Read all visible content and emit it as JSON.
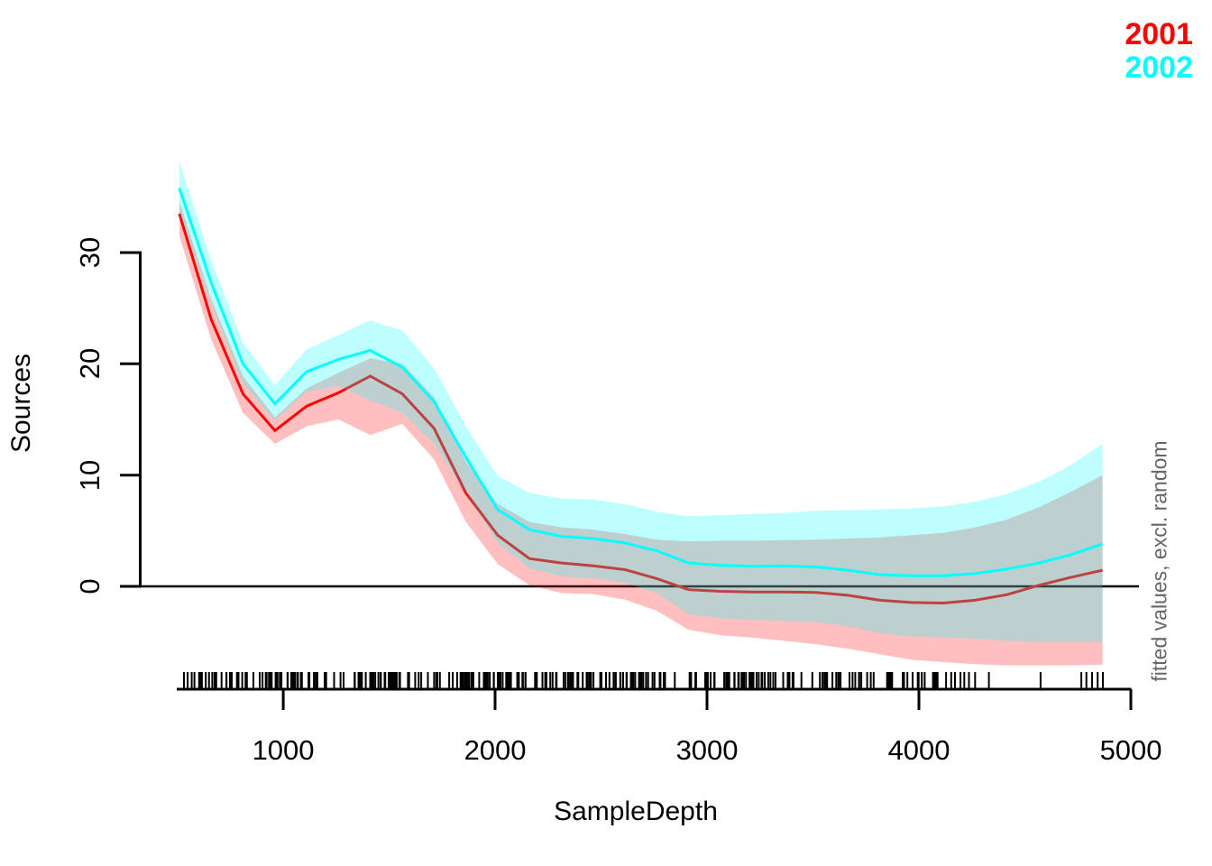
{
  "chart_data": {
    "type": "line",
    "title": "",
    "xlabel": "SampleDepth",
    "ylabel": "Sources",
    "right_label": "fitted values, excl. random",
    "legend_position": "top-right",
    "legend": [
      {
        "label": "2001",
        "color": "#FF0000"
      },
      {
        "label": "2002",
        "color": "#00FFFF"
      }
    ],
    "x_ticks": [
      1000,
      2000,
      3000,
      4000,
      5000
    ],
    "y_ticks": [
      0,
      10,
      20,
      30
    ],
    "xlim": [
      500,
      5000
    ],
    "ylim": [
      -8.5,
      38.5
    ],
    "grid": false,
    "zero_line": 0,
    "x": [
      510,
      660,
      810,
      961,
      1111,
      1261,
      1411,
      1562,
      1712,
      1862,
      2012,
      2162,
      2313,
      2463,
      2613,
      2763,
      2913,
      3064,
      3214,
      3364,
      3514,
      3664,
      3815,
      3965,
      4115,
      4265,
      4415,
      4566,
      4716,
      4866
    ],
    "series": [
      {
        "name": "2001",
        "color": "#FF0000",
        "band_color": "rgba(255,0,0,0.25)",
        "values": [
          33.5,
          24.0,
          17.3,
          14.0,
          16.2,
          17.4,
          18.9,
          17.3,
          14.2,
          8.4,
          4.6,
          2.5,
          2.1,
          1.85,
          1.5,
          0.7,
          -0.3,
          -0.45,
          -0.5,
          -0.5,
          -0.55,
          -0.8,
          -1.25,
          -1.45,
          -1.5,
          -1.25,
          -0.75,
          0.1,
          0.8,
          1.45
        ],
        "lower": [
          31.5,
          22.2,
          15.6,
          12.8,
          14.4,
          15.0,
          13.6,
          14.6,
          11.4,
          5.8,
          2.0,
          0.1,
          -0.6,
          -0.7,
          -1.2,
          -2.2,
          -3.9,
          -4.4,
          -4.6,
          -4.9,
          -5.2,
          -5.6,
          -6.1,
          -6.6,
          -6.8,
          -7.0,
          -7.1,
          -7.1,
          -7.1,
          -7.05
        ],
        "upper": [
          34.6,
          25.8,
          18.9,
          15.2,
          17.8,
          19.2,
          20.5,
          20.0,
          17.0,
          11.2,
          7.4,
          5.8,
          5.3,
          5.1,
          4.7,
          4.2,
          4.05,
          4.1,
          4.1,
          4.15,
          4.2,
          4.3,
          4.4,
          4.6,
          4.8,
          5.3,
          6.0,
          7.1,
          8.5,
          10.0
        ]
      },
      {
        "name": "2002",
        "color": "#00FFFF",
        "band_color": "rgba(0,255,255,0.26)",
        "values": [
          35.8,
          27.3,
          20.0,
          16.4,
          19.3,
          20.4,
          21.2,
          19.7,
          16.6,
          11.6,
          6.9,
          5.1,
          4.5,
          4.3,
          3.9,
          3.2,
          2.1,
          1.9,
          1.8,
          1.85,
          1.75,
          1.45,
          1.05,
          0.95,
          0.95,
          1.15,
          1.55,
          2.1,
          2.85,
          3.8
        ],
        "lower": [
          33.7,
          25.4,
          18.2,
          14.9,
          17.5,
          18.0,
          16.7,
          15.6,
          12.8,
          8.4,
          3.9,
          1.6,
          0.9,
          0.75,
          0.3,
          -0.6,
          -2.5,
          -2.9,
          -3.0,
          -3.1,
          -3.2,
          -3.6,
          -4.2,
          -4.5,
          -4.6,
          -4.7,
          -4.9,
          -5.0,
          -5.0,
          -5.0
        ],
        "upper": [
          38.2,
          29.3,
          21.9,
          18.1,
          21.3,
          22.6,
          23.9,
          23.0,
          19.6,
          14.4,
          9.9,
          8.4,
          7.9,
          7.8,
          7.4,
          6.7,
          6.3,
          6.4,
          6.5,
          6.6,
          6.8,
          6.85,
          6.9,
          7.0,
          7.2,
          7.6,
          8.3,
          9.4,
          10.9,
          12.8
        ]
      }
    ],
    "rug": {
      "seed": 42,
      "dense": [
        {
          "from": 520,
          "to": 3580,
          "count": 260
        },
        {
          "from": 3580,
          "to": 4100,
          "count": 35
        }
      ],
      "explicit": [
        4128,
        4152,
        4170,
        4196,
        4214,
        4236,
        4265,
        4330,
        4574,
        4766,
        4790,
        4817,
        4843,
        4868
      ]
    },
    "colors": {
      "axis": "#000000",
      "zero_line": "#000000",
      "right_label": "#666666"
    }
  }
}
